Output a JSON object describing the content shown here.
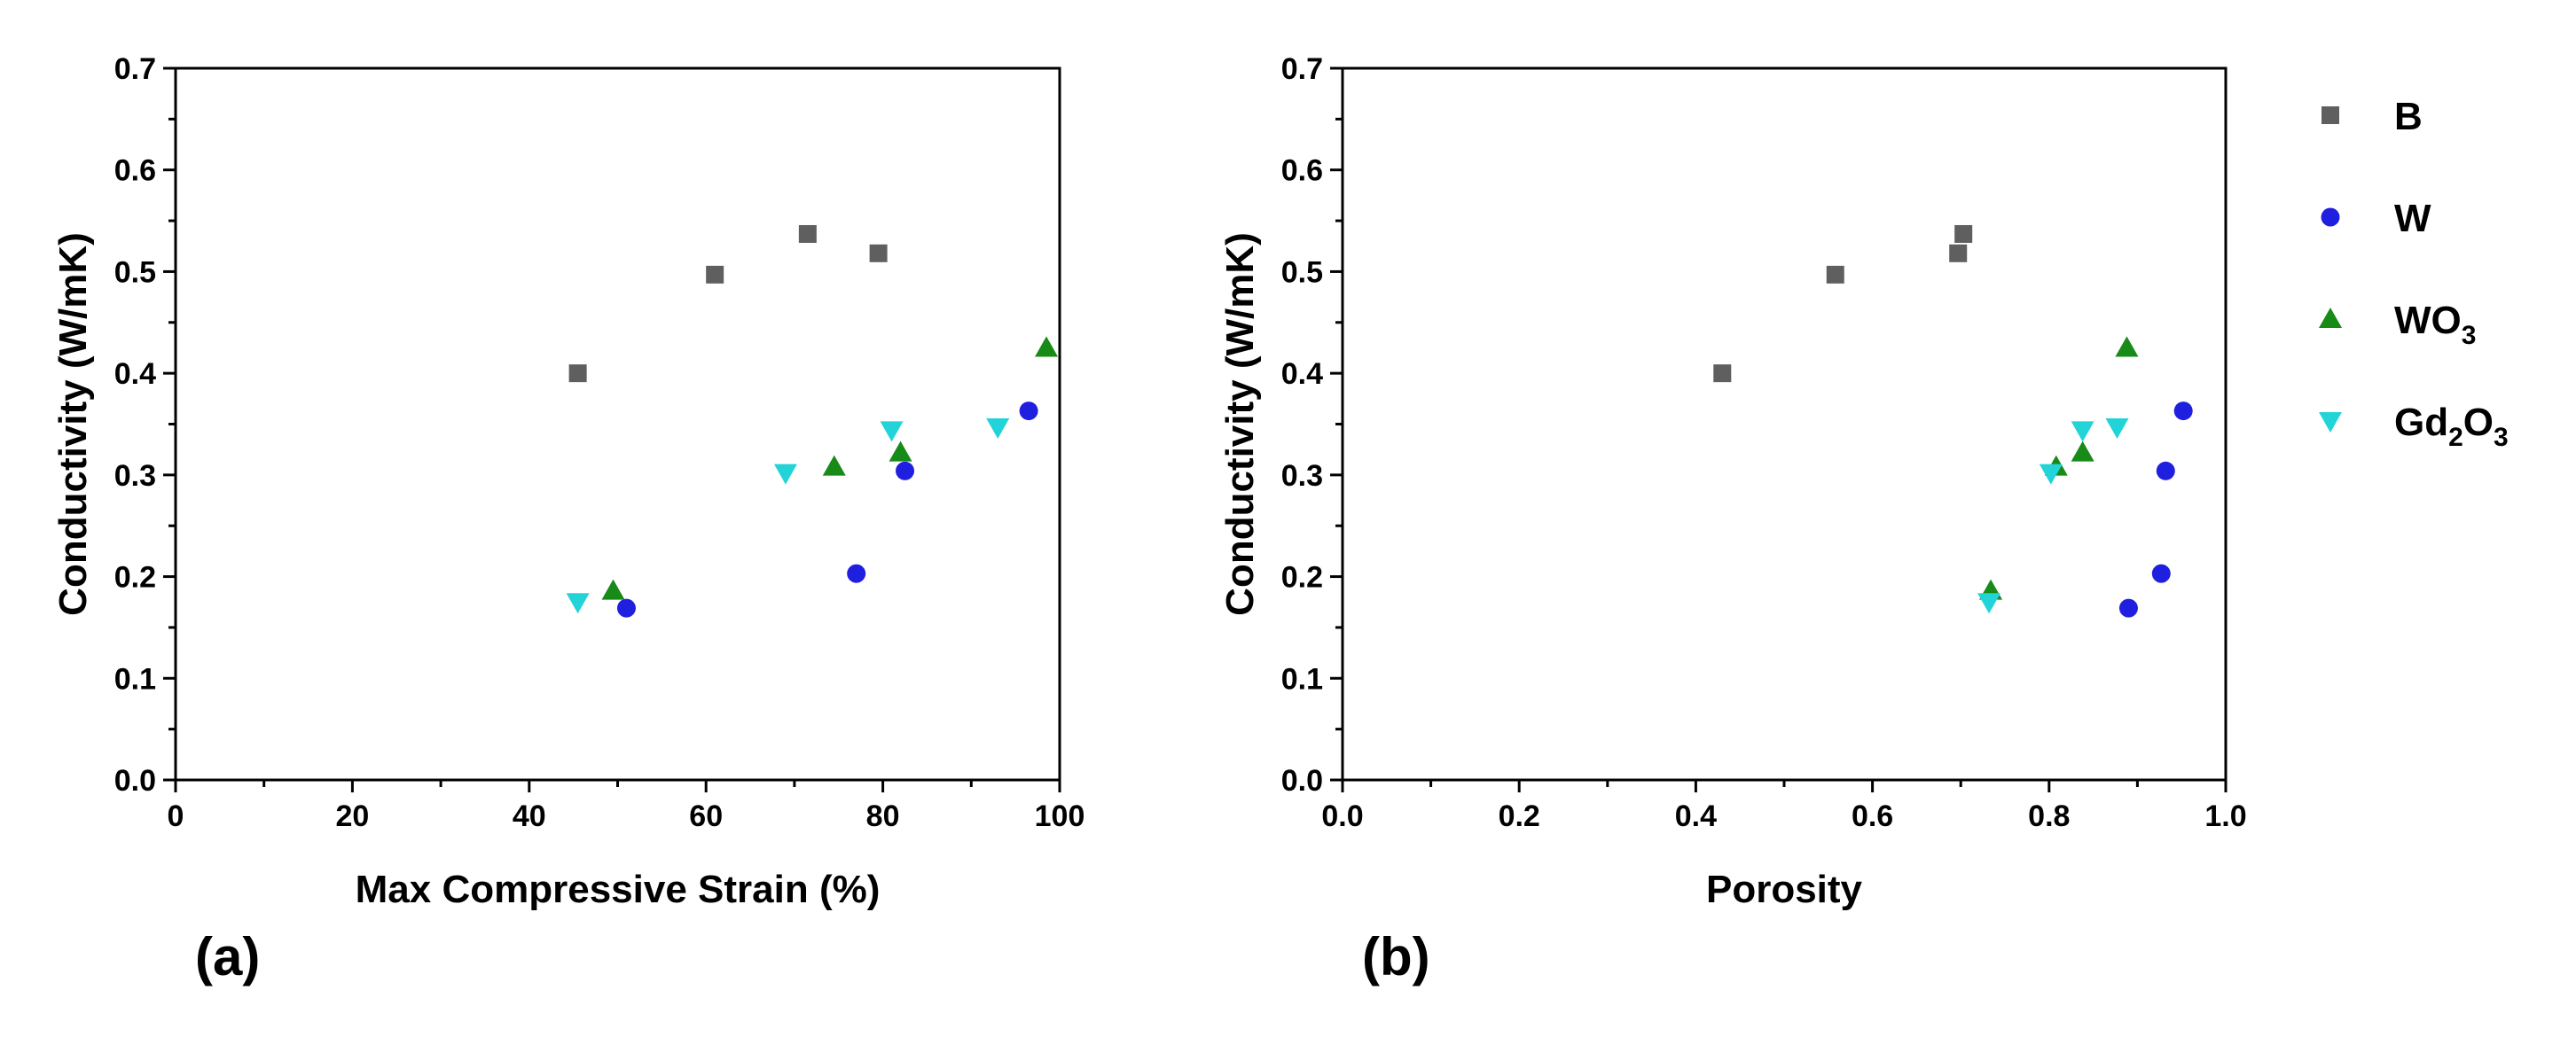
{
  "legend": [
    {
      "name": "B",
      "sub": "",
      "marker": "square",
      "color": "#5f5f5f"
    },
    {
      "name": "W",
      "sub": "",
      "marker": "circle",
      "color": "#1f1fe0"
    },
    {
      "name": "WO",
      "sub": "3",
      "marker": "triangle-up",
      "color": "#188a18"
    },
    {
      "name": "Gd",
      "sub": "2",
      "name2": "O",
      "sub2": "3",
      "marker": "triangle-down",
      "color": "#22d4d8"
    }
  ],
  "chart_data": [
    {
      "type": "scatter",
      "panel_label": "(a)",
      "xlabel": "Max Compressive Strain (%)",
      "ylabel": "Conductivity (W/mK)",
      "xlim": [
        0,
        100
      ],
      "ylim": [
        0,
        0.7
      ],
      "xticks": [
        "0",
        "20",
        "40",
        "60",
        "80",
        "100"
      ],
      "yticks": [
        "0.0",
        "0.1",
        "0.2",
        "0.3",
        "0.4",
        "0.5",
        "0.6",
        "0.7"
      ],
      "series": [
        {
          "name": "B",
          "points": [
            [
              45.5,
              0.4
            ],
            [
              61,
              0.497
            ],
            [
              71.5,
              0.537
            ],
            [
              79.5,
              0.518
            ]
          ]
        },
        {
          "name": "W",
          "points": [
            [
              51,
              0.169
            ],
            [
              77,
              0.203
            ],
            [
              82.5,
              0.304
            ],
            [
              96.5,
              0.363
            ]
          ]
        },
        {
          "name": "WO3",
          "points": [
            [
              49.5,
              0.186
            ],
            [
              74.5,
              0.308
            ],
            [
              82,
              0.322
            ],
            [
              98.5,
              0.425
            ]
          ]
        },
        {
          "name": "Gd2O3",
          "points": [
            [
              45.5,
              0.175
            ],
            [
              69,
              0.302
            ],
            [
              81,
              0.344
            ],
            [
              93,
              0.347
            ]
          ]
        }
      ]
    },
    {
      "type": "scatter",
      "panel_label": "(b)",
      "xlabel": "Porosity",
      "ylabel": "Conductivity (W/mK)",
      "xlim": [
        0,
        1.0
      ],
      "ylim": [
        0,
        0.7
      ],
      "xticks": [
        "0.0",
        "0.2",
        "0.4",
        "0.6",
        "0.8",
        "1.0"
      ],
      "yticks": [
        "0.0",
        "0.1",
        "0.2",
        "0.3",
        "0.4",
        "0.5",
        "0.6",
        "0.7"
      ],
      "series": [
        {
          "name": "B",
          "points": [
            [
              0.43,
              0.4
            ],
            [
              0.558,
              0.497
            ],
            [
              0.697,
              0.518
            ],
            [
              0.703,
              0.537
            ]
          ]
        },
        {
          "name": "W",
          "points": [
            [
              0.89,
              0.169
            ],
            [
              0.927,
              0.203
            ],
            [
              0.932,
              0.304
            ],
            [
              0.952,
              0.363
            ]
          ]
        },
        {
          "name": "WO3",
          "points": [
            [
              0.734,
              0.186
            ],
            [
              0.808,
              0.308
            ],
            [
              0.838,
              0.322
            ],
            [
              0.888,
              0.425
            ]
          ]
        },
        {
          "name": "Gd2O3",
          "points": [
            [
              0.732,
              0.175
            ],
            [
              0.802,
              0.302
            ],
            [
              0.838,
              0.344
            ],
            [
              0.877,
              0.347
            ]
          ]
        }
      ]
    }
  ]
}
